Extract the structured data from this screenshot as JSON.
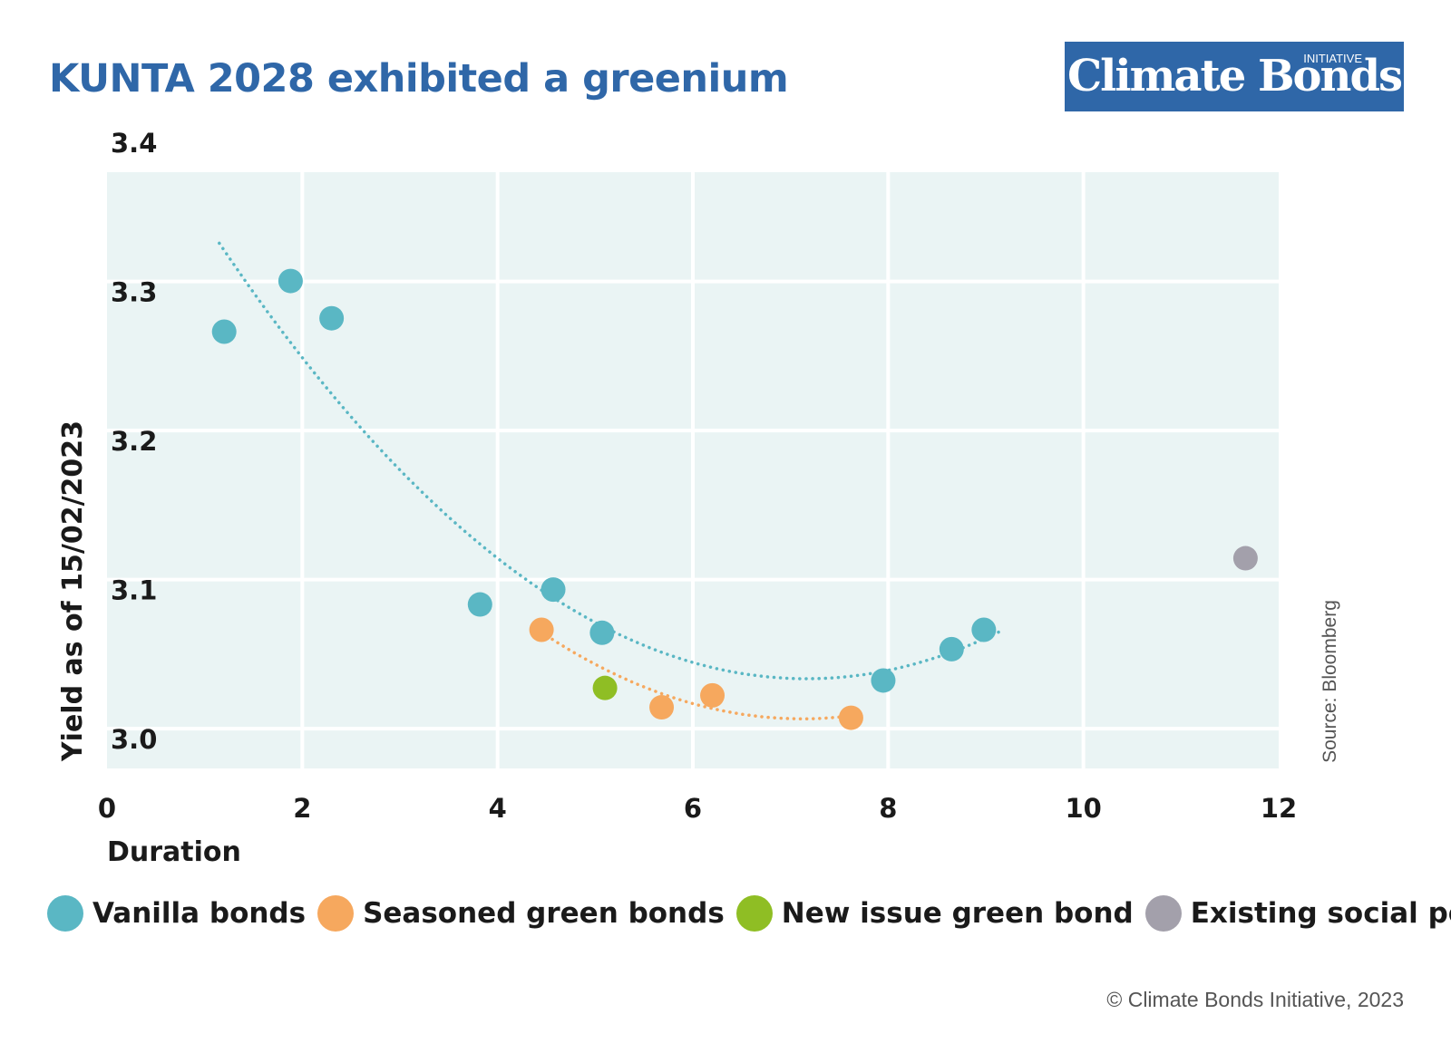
{
  "logo": {
    "text": "Climate Bonds",
    "sup": "INITIATIVE"
  },
  "source_note": "Source: Bloomberg",
  "copyright": "© Climate Bonds Initiative, 2023",
  "colors": {
    "vanilla": "#5ab7c4",
    "seasoned": "#f6a85e",
    "new_issue": "#8fbe24",
    "social": "#a3a0ab",
    "plot_bg": "#eaf4f4",
    "title": "#2f67a8"
  },
  "chart_data": {
    "type": "scatter",
    "title": "KUNTA 2028 exhibited a greenium",
    "xlabel": "Duration",
    "ylabel": "Yield as of 15/02/2023",
    "xlim": [
      0,
      12
    ],
    "ylim": [
      2.98,
      3.38
    ],
    "x_ticks": [
      "0",
      "2",
      "4",
      "6",
      "8",
      "10",
      "12"
    ],
    "y_ticks": [
      "3.0",
      "3.1",
      "3.2",
      "3.3",
      "3.4"
    ],
    "grid": true,
    "legend_position": "bottom",
    "series": [
      {
        "name": "Vanilla bonds",
        "color": "#5ab7c4",
        "points": [
          [
            1.2,
            3.273
          ],
          [
            1.88,
            3.307
          ],
          [
            2.3,
            3.282
          ],
          [
            3.82,
            3.09
          ],
          [
            4.57,
            3.1
          ],
          [
            5.07,
            3.071
          ],
          [
            7.95,
            3.039
          ],
          [
            8.65,
            3.06
          ],
          [
            8.98,
            3.073
          ]
        ],
        "trendline": {
          "type": "quadratic",
          "x_range": [
            1.15,
            9.15
          ]
        }
      },
      {
        "name": "Seasoned green bonds",
        "color": "#f6a85e",
        "points": [
          [
            4.45,
            3.073
          ],
          [
            5.68,
            3.021
          ],
          [
            6.2,
            3.029
          ],
          [
            7.62,
            3.014
          ]
        ],
        "trendline": {
          "type": "quadratic",
          "x_range": [
            4.45,
            7.62
          ]
        }
      },
      {
        "name": "New issue green bond",
        "color": "#8fbe24",
        "points": [
          [
            5.1,
            3.034
          ]
        ]
      },
      {
        "name": "Existing social point",
        "color": "#a3a0ab",
        "points": [
          [
            11.66,
            3.121
          ]
        ]
      }
    ]
  }
}
